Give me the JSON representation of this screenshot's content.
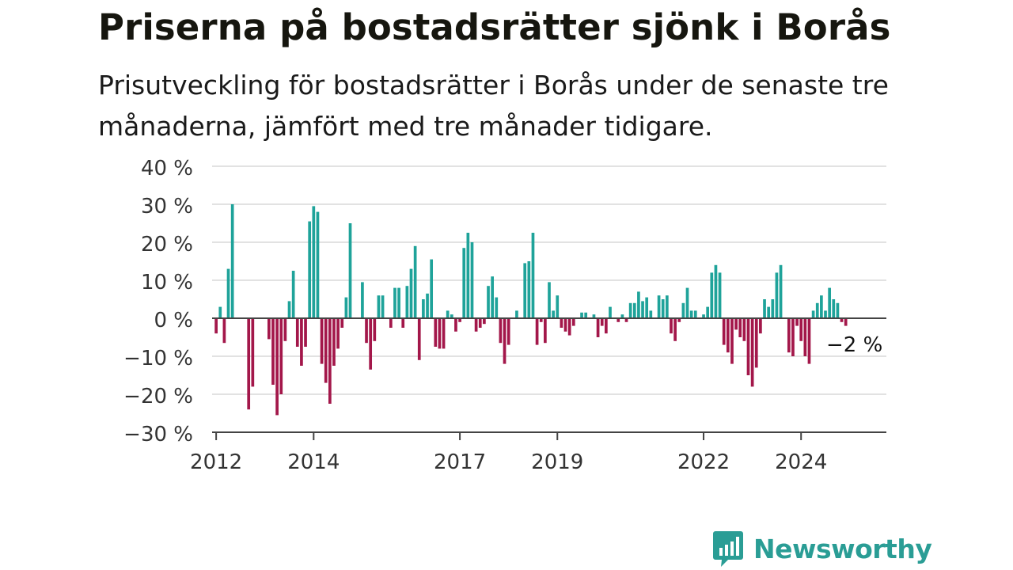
{
  "title": "Priserna på bostadsrätter sjönk i Borås",
  "subtitle": "Prisutveckling för bostadsrätter i Borås under de senaste tre månaderna, jämfört med tre månader tidigare.",
  "brand": {
    "name": "Newsworthy",
    "icon": "newsworthy-bar-chart-icon"
  },
  "colors": {
    "positive": "#1fa39a",
    "negative": "#a3174a",
    "grid": "#d9d9d9",
    "baseline": "#444444",
    "brand": "#2a9d95"
  },
  "chart_data": {
    "type": "bar",
    "xlabel": "",
    "ylabel": "",
    "x_start": "2011-12",
    "x_end": "2025-10",
    "ylim": [
      -30,
      40
    ],
    "yticks": [
      40,
      30,
      20,
      10,
      0,
      -10,
      -20,
      -30
    ],
    "ytick_labels": [
      "40 %",
      "30 %",
      "20 %",
      "10 %",
      "0 %",
      "−10 %",
      "−20 %",
      "−30 %"
    ],
    "xtick_years": [
      2012,
      2014,
      2017,
      2019,
      2022,
      2024
    ],
    "xtick_labels": [
      "2012",
      "2014",
      "2017",
      "2019",
      "2022",
      "2024"
    ],
    "grid": true,
    "last_value_label": "−2 %",
    "series": [
      {
        "start": "2012-01",
        "values": [
          -4,
          3,
          -6.5,
          13,
          30,
          0,
          0,
          0,
          -24,
          -18,
          0,
          0,
          0,
          -5.5,
          -17.5,
          -25.5,
          -20,
          -6,
          4.5,
          12.5,
          -7.5,
          -12.5,
          -7.5,
          25.5,
          29.5,
          28,
          -12,
          -17,
          -22.5,
          -12.5,
          -8,
          -2.5,
          5.5,
          25,
          0,
          0,
          9.5,
          -6.5,
          -13.5,
          -6,
          6,
          6,
          0,
          -2.5,
          8,
          8,
          -2.5,
          8.5,
          13,
          19,
          -11,
          5,
          6.5,
          15.5,
          -7.5,
          -8,
          -8,
          2,
          1,
          -3.5,
          -1,
          18.5,
          22.5,
          20,
          -3.5,
          -2.5,
          -1.5,
          8.5,
          11,
          5.5,
          -6.5,
          -12,
          -7,
          0,
          2,
          0,
          14.5,
          15,
          22.5,
          -7,
          -1,
          -6.5,
          9.5,
          2,
          6,
          -2.5,
          -3.5,
          -4.5,
          -2,
          0,
          1.5,
          1.5,
          0,
          1,
          -5,
          -2,
          -4,
          3,
          0,
          -1,
          1,
          -1,
          4,
          4,
          7,
          4.5,
          5.5,
          2,
          0,
          6,
          5,
          6,
          -4,
          -6,
          -1,
          4,
          8,
          2,
          2,
          0,
          1,
          3,
          12,
          14,
          12,
          -7,
          -9,
          -12,
          -3,
          -5,
          -6,
          -15,
          -18,
          -13,
          -4,
          5,
          3,
          5,
          12,
          14,
          0,
          -9,
          -10,
          -2,
          -6,
          -10,
          -12,
          2,
          4,
          6,
          2,
          8,
          5,
          4,
          -1,
          -2
        ]
      }
    ]
  }
}
